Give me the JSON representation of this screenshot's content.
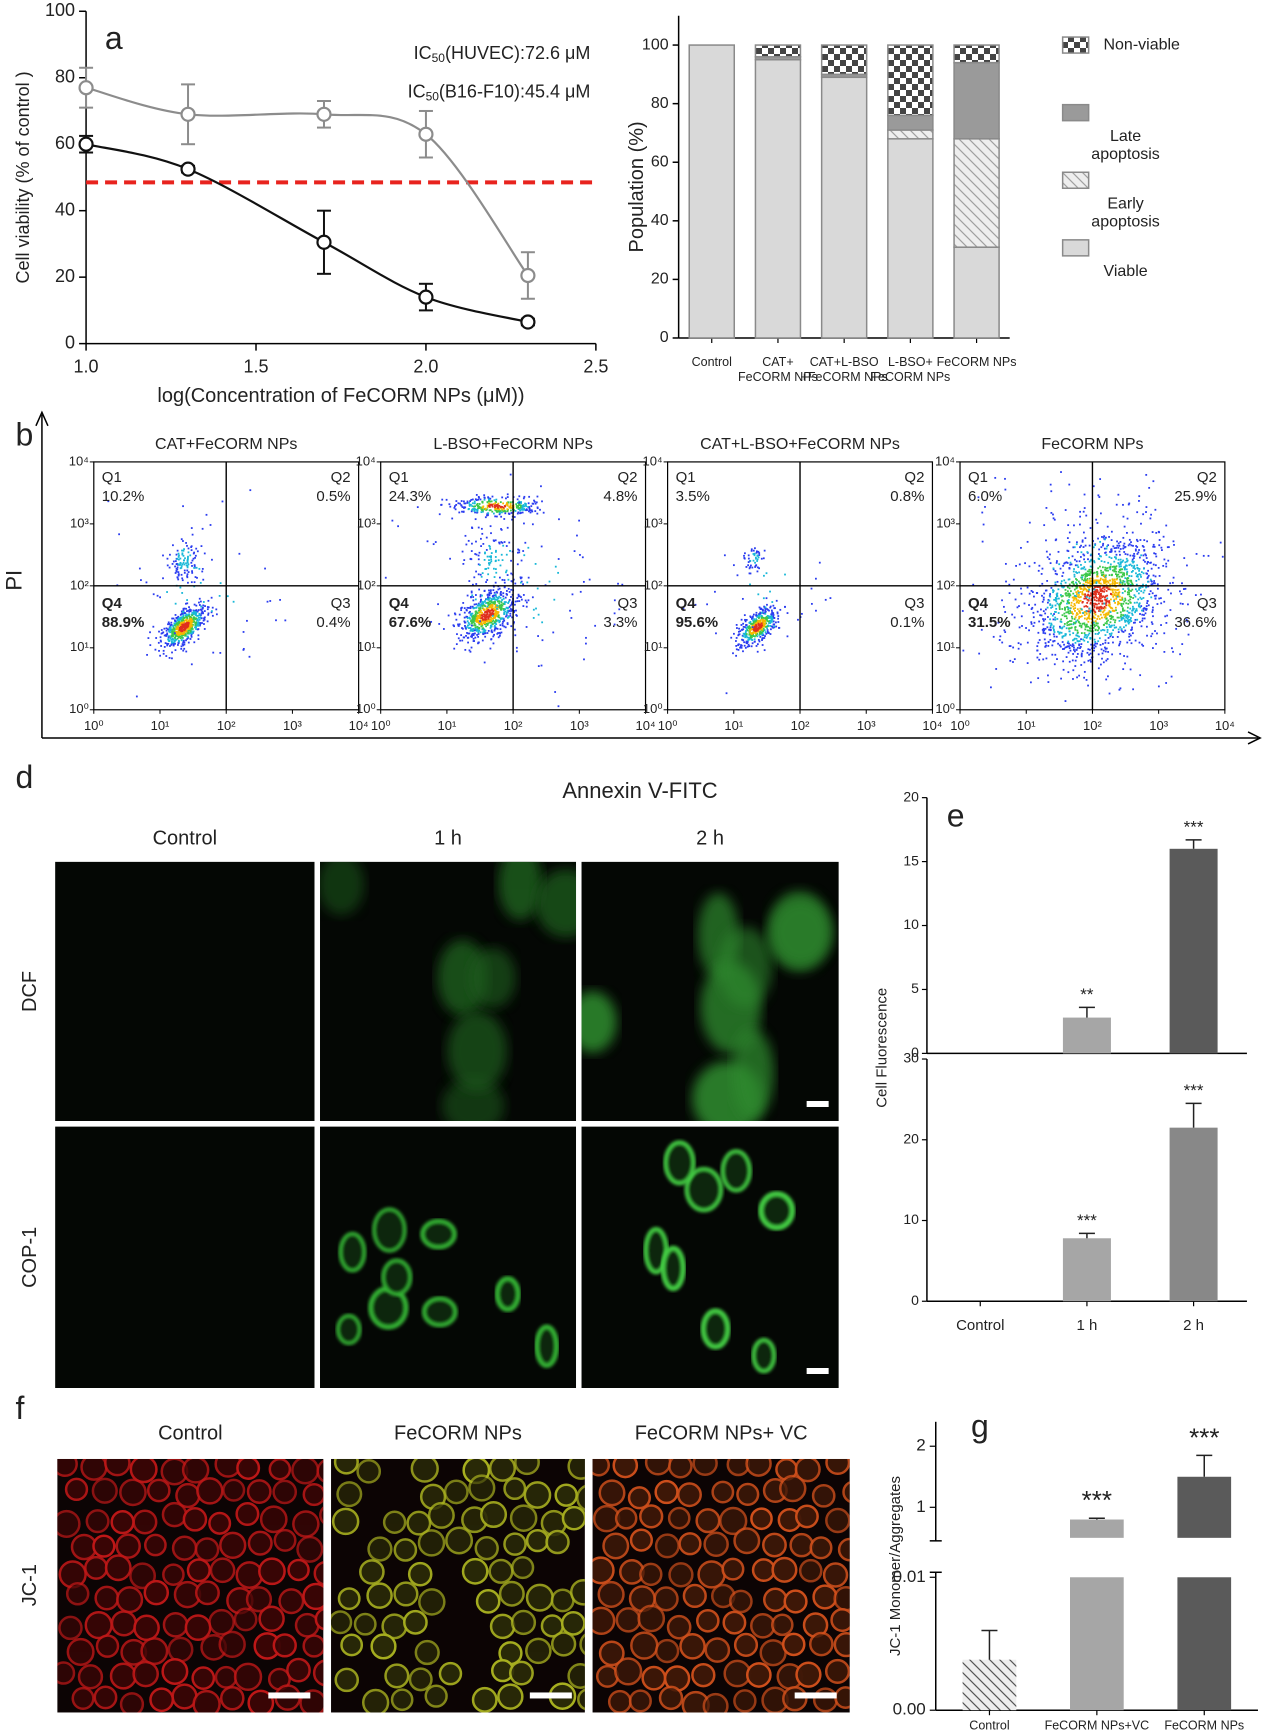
{
  "panel_labels": {
    "a": "a",
    "b": "b",
    "d": "d",
    "e": "e",
    "f": "f",
    "g": "g"
  },
  "chart_data": [
    {
      "type": "line",
      "x": [
        1,
        1.3,
        1.7,
        2,
        2.3
      ],
      "series": [
        {
          "color": "#8c8c8c",
          "values": [
            77,
            69,
            69,
            63,
            20.5
          ],
          "errors": [
            6,
            9,
            4,
            7,
            7
          ]
        },
        {
          "color": "#111111",
          "values": [
            60,
            52.5,
            30.5,
            14,
            6.5
          ],
          "errors": [
            2.5,
            1,
            9.5,
            4,
            1
          ]
        }
      ],
      "annotations": [
        {
          "text": "IC",
          "sub": "50",
          "rest": "(HUVEC):72.6 μM"
        },
        {
          "text": "IC",
          "sub": "50",
          "rest": "(B16-F10):45.4 μM"
        }
      ],
      "reference_line": {
        "value": 48.5,
        "color": "#e8231e"
      },
      "xlim": [
        1,
        2.5
      ],
      "xticks": [
        {
          "value": 1,
          "label": "1.0"
        },
        {
          "value": 1.5,
          "label": "1.5"
        },
        {
          "value": 2,
          "label": "2.0"
        },
        {
          "value": 2.5,
          "label": "2.5"
        }
      ],
      "ylim": [
        0,
        100
      ],
      "yticks": [
        0,
        20,
        40,
        60,
        80,
        100
      ],
      "x_label": "log(Concentration of  FeCORM NPs (μM))",
      "y_label": "Cell viability (% of control )"
    },
    {
      "type": "stacked_bar",
      "categories": [
        [
          "Control"
        ],
        [
          "CAT+",
          "FeCORM NPs"
        ],
        [
          "CAT+L-BSO",
          "+FeCORM NPs"
        ],
        [
          "L-BSO+",
          "FeCORM NPs"
        ],
        [
          "FeCORM NPs"
        ]
      ],
      "series": [
        {
          "name": [
            "Viable"
          ],
          "color": "#d9d9d9",
          "pattern": "solid",
          "values": [
            100,
            95,
            89,
            68,
            31
          ]
        },
        {
          "name": [
            "Early",
            "apoptosis"
          ],
          "color": "#a0a0a0",
          "pattern": "hatch",
          "values": [
            0,
            0,
            0,
            3,
            37
          ]
        },
        {
          "name": [
            "Late",
            "apoptosis"
          ],
          "color": "#9a9a9a",
          "pattern": "solid",
          "values": [
            0,
            1,
            1,
            5,
            26
          ]
        },
        {
          "name": [
            "Non-viable"
          ],
          "color": "#444444",
          "pattern": "checker",
          "values": [
            0,
            4,
            10,
            24,
            6
          ]
        }
      ],
      "ylim": [
        0,
        110
      ],
      "yticks": [
        0,
        20,
        40,
        60,
        80,
        100
      ],
      "y_label": "Population (%)"
    },
    {
      "type": "flow",
      "x_label": "Annexin V-FITC",
      "y_label": "PI",
      "xlim": [
        0,
        4
      ],
      "ylim": [
        0,
        4
      ],
      "ticks": [
        {
          "value": 0,
          "label": "10⁰"
        },
        {
          "value": 1,
          "label": "10¹"
        },
        {
          "value": 2,
          "label": "10²"
        },
        {
          "value": 3,
          "label": "10³"
        },
        {
          "value": 4,
          "label": "10⁴"
        }
      ],
      "gate": [
        2,
        2
      ],
      "plots": [
        {
          "title": "CAT+FeCORM NPs",
          "quadrants": [
            {
              "name": "Q1",
              "label": "10.2%"
            },
            {
              "name": "Q2",
              "label": "0.5%"
            },
            {
              "name": "Q3",
              "label": "0.4%"
            },
            {
              "name": "Q4",
              "label": "88.9%"
            }
          ]
        },
        {
          "title": "L-BSO+FeCORM NPs",
          "quadrants": [
            {
              "name": "Q1",
              "label": "24.3%"
            },
            {
              "name": "Q2",
              "label": "4.8%"
            },
            {
              "name": "Q3",
              "label": "3.3%"
            },
            {
              "name": "Q4",
              "label": "67.6%"
            }
          ]
        },
        {
          "title": "CAT+L-BSO+FeCORM NPs",
          "quadrants": [
            {
              "name": "Q1",
              "label": "3.5%"
            },
            {
              "name": "Q2",
              "label": "0.8%"
            },
            {
              "name": "Q3",
              "label": "0.1%"
            },
            {
              "name": "Q4",
              "label": "95.6%"
            }
          ]
        },
        {
          "title": "FeCORM NPs",
          "quadrants": [
            {
              "name": "Q1",
              "label": "6.0%"
            },
            {
              "name": "Q2",
              "label": "25.9%"
            },
            {
              "name": "Q3",
              "label": "36.6%"
            },
            {
              "name": "Q4",
              "label": "31.5%"
            }
          ]
        }
      ]
    },
    {
      "type": "bar_panels",
      "categories": [
        "Control",
        "1 h",
        "2 h"
      ],
      "y_label": "Cell Fluorescence",
      "panels": [
        {
          "values": [
            0,
            2.8,
            16
          ],
          "errors": [
            0,
            0.8,
            0.7
          ],
          "colors": [
            "#a6a6a6",
            "#a6a6a6",
            "#5a5a5a"
          ],
          "stars": [
            null,
            "**",
            "***"
          ],
          "ylim": [
            0,
            20
          ],
          "yticks": [
            0,
            5,
            10,
            15,
            20
          ]
        },
        {
          "values": [
            0,
            7.8,
            21.5
          ],
          "errors": [
            0,
            0.6,
            3
          ],
          "colors": [
            "#a6a6a6",
            "#a6a6a6",
            "#888888"
          ],
          "stars": [
            null,
            "***",
            "***"
          ],
          "ylim": [
            0,
            30
          ],
          "yticks": [
            0,
            10,
            20,
            30
          ]
        }
      ]
    },
    {
      "type": "broken_bar",
      "categories": [
        "Control",
        "FeCORM NPs+VC",
        "FeCORM NPs"
      ],
      "values": [
        0.0038,
        0.8,
        1.5
      ],
      "errors": [
        0.0022,
        0.02,
        0.35
      ],
      "colors": [
        "#555555",
        "#a6a6a6",
        "#5a5a5a"
      ],
      "patterns": [
        "hatch",
        "solid",
        "solid"
      ],
      "stars": [
        null,
        "***",
        "***"
      ],
      "segments": [
        {
          "ylim": [
            0,
            0.01
          ],
          "yticks": [
            {
              "value": 0,
              "label": "0.00"
            },
            {
              "value": 0.01,
              "label": "0.01"
            }
          ]
        },
        {
          "ylim": [
            0.5,
            2.4
          ],
          "yticks": [
            1,
            2
          ]
        }
      ],
      "y_label": "JC-1 Monomer/Aggregates"
    }
  ],
  "micrographs": [
    {
      "columns": [
        "Control",
        "1 h",
        "2 h"
      ],
      "rows": [
        "DCF",
        "COP-1"
      ]
    },
    {
      "columns": [
        "Control",
        "FeCORM NPs",
        "FeCORM NPs+ VC"
      ],
      "rows": [
        "JC-1"
      ]
    }
  ]
}
